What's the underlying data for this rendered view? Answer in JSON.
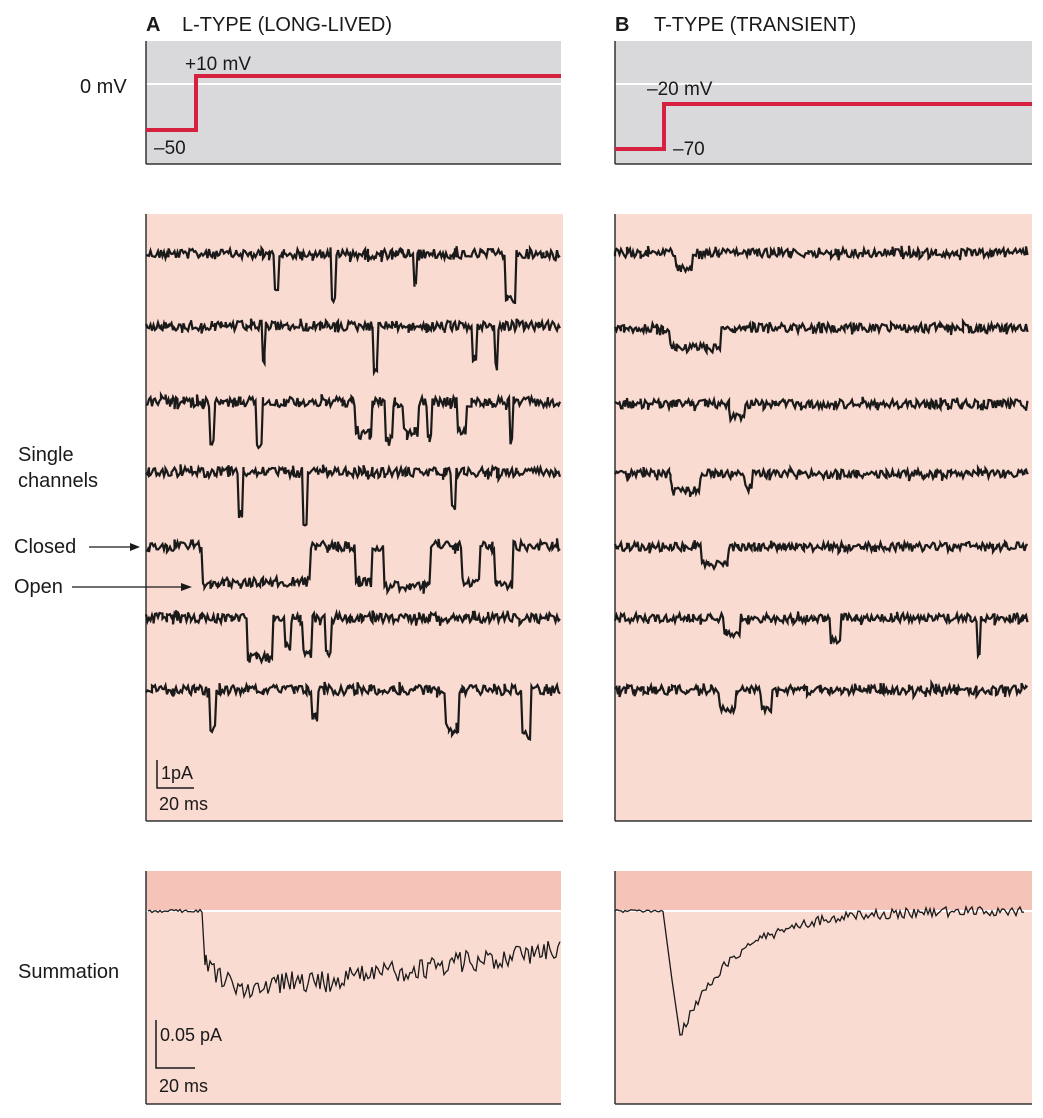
{
  "panel_a": {
    "letter": "A",
    "title": "L-TYPE (LONG-LIVED)",
    "step_top": "+10 mV",
    "step_bottom": "–50",
    "scale_current": "1pA",
    "scale_time": "20 ms",
    "sum_scale_current": "0.05 pA",
    "sum_scale_time": "20 ms"
  },
  "panel_b": {
    "letter": "B",
    "title": "T-TYPE (TRANSIENT)",
    "step_top": "–20 mV",
    "step_bottom": "–70"
  },
  "labels": {
    "zero_mv": "0 mV",
    "single_channels_1": "Single",
    "single_channels_2": "channels",
    "closed": "Closed",
    "open": "Open",
    "summation": "Summation"
  },
  "colors": {
    "voltage_bg": "#d9d9db",
    "trace_bg": "#f9dbd1",
    "summation_band": "#f6c3b8",
    "step_line": "#d6203f",
    "trace": "#1a1a1a"
  }
}
